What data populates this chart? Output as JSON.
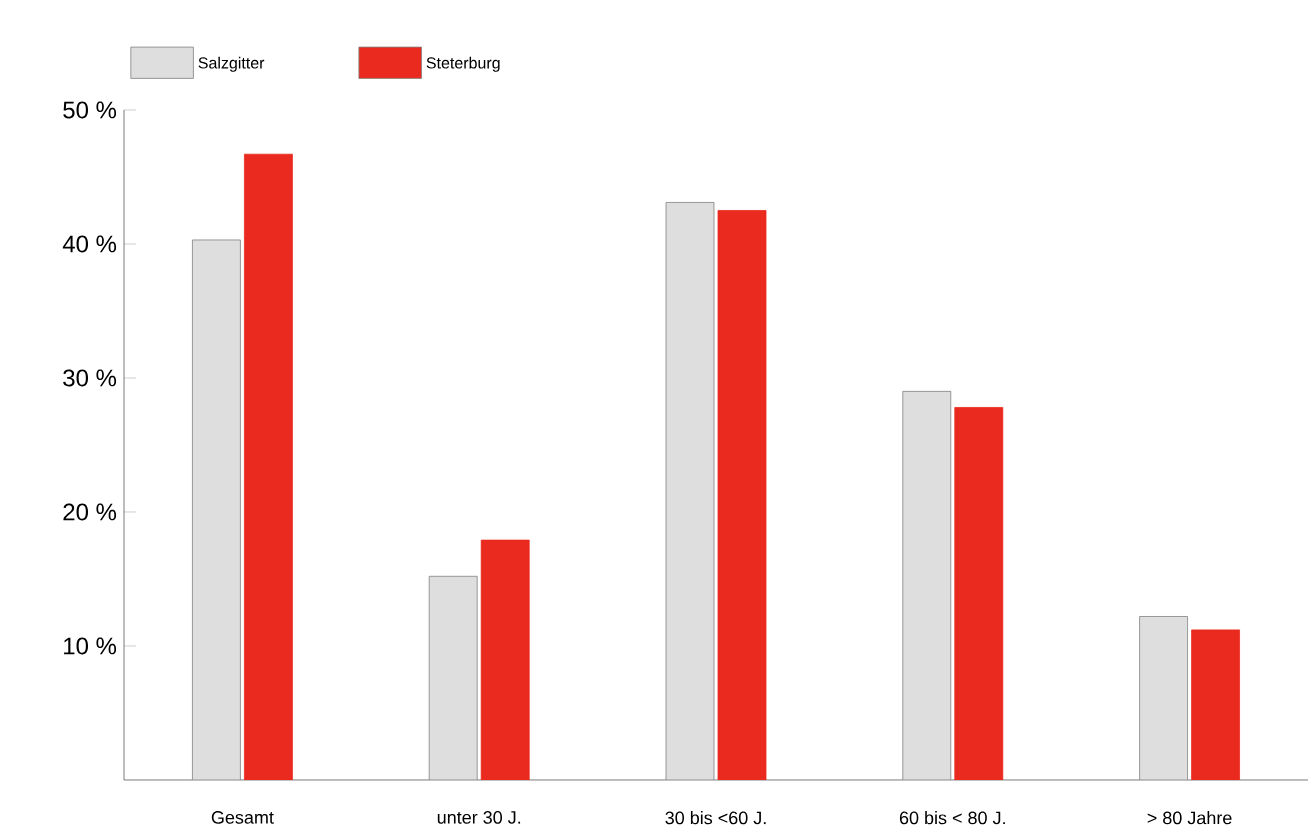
{
  "chart_data": {
    "type": "bar",
    "categories": [
      "Gesamt",
      "unter 30 J.",
      "30 bis <60 J.",
      "60 bis < 80 J.",
      "> 80 Jahre"
    ],
    "series": [
      {
        "name": "Salzgitter",
        "color": "#dedede",
        "values": [
          40.3,
          15.2,
          43.1,
          29.0,
          12.2
        ]
      },
      {
        "name": "Steterburg",
        "color": "#ea2a1e",
        "values": [
          46.7,
          17.9,
          42.5,
          27.8,
          11.2
        ]
      }
    ],
    "ylim": [
      0,
      50
    ],
    "yticks": [
      {
        "value": 10,
        "label": "10 %"
      },
      {
        "value": 20,
        "label": "20 %"
      },
      {
        "value": 30,
        "label": "30 %"
      },
      {
        "value": 40,
        "label": "40 %"
      },
      {
        "value": 50,
        "label": "50 %"
      }
    ],
    "grid": false,
    "legend": "top left"
  }
}
